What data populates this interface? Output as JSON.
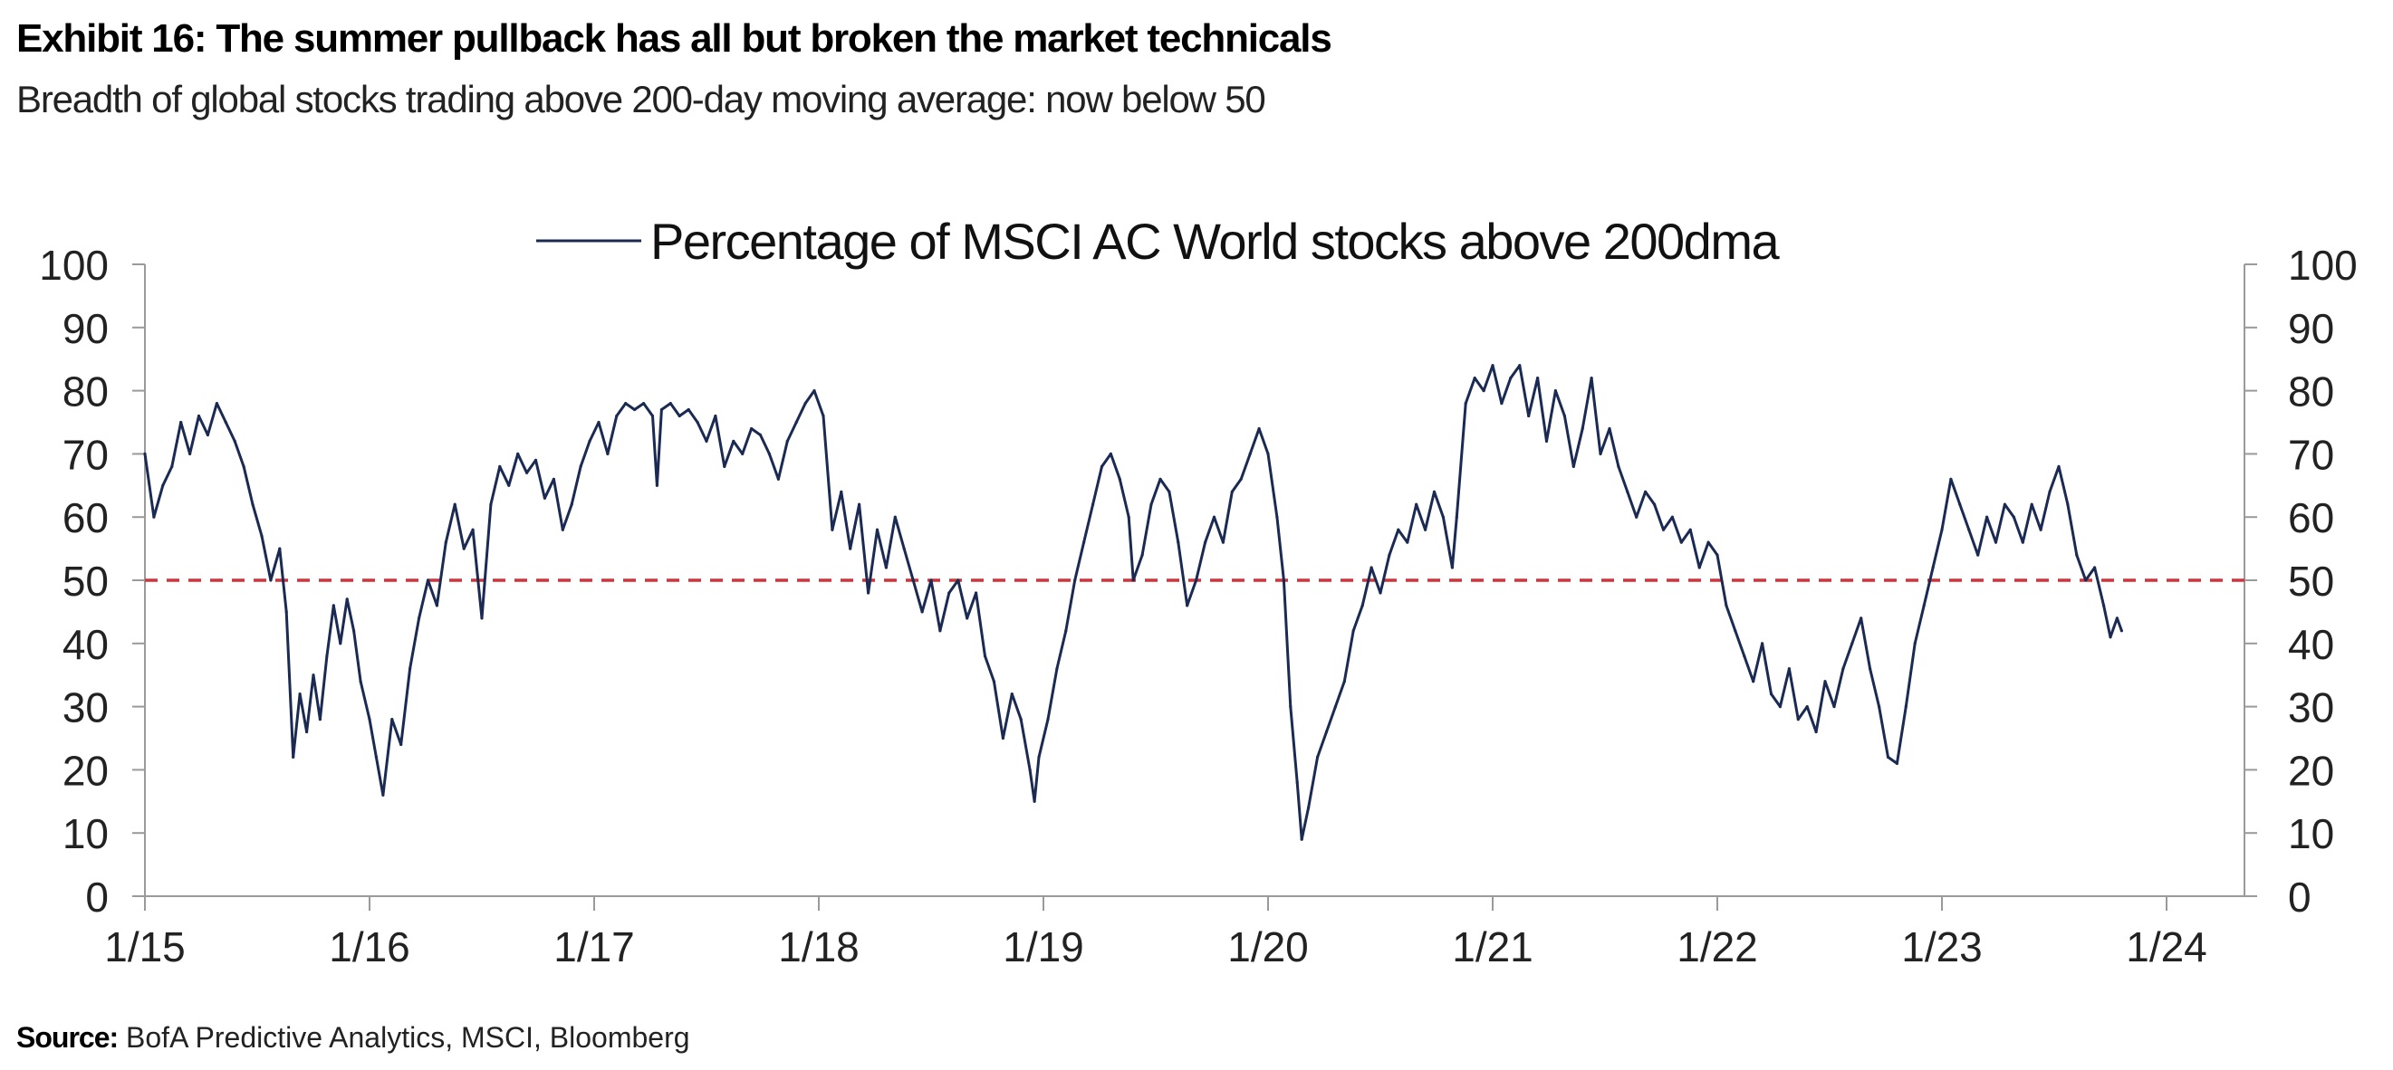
{
  "header": {
    "title": "Exhibit 16: The summer pullback has all but broken the market technicals",
    "subtitle": "Breadth of global stocks trading above 200-day moving average: now below 50"
  },
  "footer": {
    "source_label": "Source:",
    "source_text": "BofA Predictive Analytics, MSCI, Bloomberg"
  },
  "colors": {
    "series": "#1b2a52",
    "reference": "#d0343a",
    "axis": "#9a9a9a"
  },
  "chart_data": {
    "type": "line",
    "legend": {
      "label": "Percentage of MSCI AC World stocks above 200dma",
      "position": "top-center"
    },
    "x_tick_labels": [
      "1/15",
      "1/16",
      "1/17",
      "1/18",
      "1/19",
      "1/20",
      "1/21",
      "1/22",
      "1/23",
      "1/24"
    ],
    "x_range": [
      2015.0,
      2024.0
    ],
    "y_left_ticks": [
      "100",
      "90",
      "80",
      "70",
      "60",
      "50",
      "40",
      "30",
      "20",
      "10",
      "0"
    ],
    "y_right_ticks": [
      "100",
      "90",
      "80",
      "70",
      "60",
      "50",
      "40",
      "30",
      "20",
      "10",
      "0"
    ],
    "ylim": [
      0,
      100
    ],
    "reference_line": {
      "y": 50,
      "style": "dashed"
    },
    "series": [
      {
        "name": "Percentage of MSCI AC World stocks above 200dma",
        "points": [
          [
            2015.0,
            70
          ],
          [
            2015.04,
            60
          ],
          [
            2015.08,
            65
          ],
          [
            2015.12,
            68
          ],
          [
            2015.16,
            75
          ],
          [
            2015.2,
            70
          ],
          [
            2015.24,
            76
          ],
          [
            2015.28,
            73
          ],
          [
            2015.32,
            78
          ],
          [
            2015.36,
            75
          ],
          [
            2015.4,
            72
          ],
          [
            2015.44,
            68
          ],
          [
            2015.48,
            62
          ],
          [
            2015.52,
            57
          ],
          [
            2015.56,
            50
          ],
          [
            2015.6,
            55
          ],
          [
            2015.63,
            45
          ],
          [
            2015.66,
            22
          ],
          [
            2015.69,
            32
          ],
          [
            2015.72,
            26
          ],
          [
            2015.75,
            35
          ],
          [
            2015.78,
            28
          ],
          [
            2015.81,
            38
          ],
          [
            2015.84,
            46
          ],
          [
            2015.87,
            40
          ],
          [
            2015.9,
            47
          ],
          [
            2015.93,
            42
          ],
          [
            2015.96,
            34
          ],
          [
            2016.0,
            28
          ],
          [
            2016.03,
            22
          ],
          [
            2016.06,
            16
          ],
          [
            2016.1,
            28
          ],
          [
            2016.14,
            24
          ],
          [
            2016.18,
            36
          ],
          [
            2016.22,
            44
          ],
          [
            2016.26,
            50
          ],
          [
            2016.3,
            46
          ],
          [
            2016.34,
            56
          ],
          [
            2016.38,
            62
          ],
          [
            2016.42,
            55
          ],
          [
            2016.46,
            58
          ],
          [
            2016.5,
            44
          ],
          [
            2016.54,
            62
          ],
          [
            2016.58,
            68
          ],
          [
            2016.62,
            65
          ],
          [
            2016.66,
            70
          ],
          [
            2016.7,
            67
          ],
          [
            2016.74,
            69
          ],
          [
            2016.78,
            63
          ],
          [
            2016.82,
            66
          ],
          [
            2016.86,
            58
          ],
          [
            2016.9,
            62
          ],
          [
            2016.94,
            68
          ],
          [
            2016.98,
            72
          ],
          [
            2017.02,
            75
          ],
          [
            2017.06,
            70
          ],
          [
            2017.1,
            76
          ],
          [
            2017.14,
            78
          ],
          [
            2017.18,
            77
          ],
          [
            2017.22,
            78
          ],
          [
            2017.26,
            76
          ],
          [
            2017.28,
            65
          ],
          [
            2017.3,
            77
          ],
          [
            2017.34,
            78
          ],
          [
            2017.38,
            76
          ],
          [
            2017.42,
            77
          ],
          [
            2017.46,
            75
          ],
          [
            2017.5,
            72
          ],
          [
            2017.54,
            76
          ],
          [
            2017.58,
            68
          ],
          [
            2017.62,
            72
          ],
          [
            2017.66,
            70
          ],
          [
            2017.7,
            74
          ],
          [
            2017.74,
            73
          ],
          [
            2017.78,
            70
          ],
          [
            2017.82,
            66
          ],
          [
            2017.86,
            72
          ],
          [
            2017.9,
            75
          ],
          [
            2017.94,
            78
          ],
          [
            2017.98,
            80
          ],
          [
            2018.02,
            76
          ],
          [
            2018.06,
            58
          ],
          [
            2018.1,
            64
          ],
          [
            2018.14,
            55
          ],
          [
            2018.18,
            62
          ],
          [
            2018.22,
            48
          ],
          [
            2018.26,
            58
          ],
          [
            2018.3,
            52
          ],
          [
            2018.34,
            60
          ],
          [
            2018.38,
            55
          ],
          [
            2018.42,
            50
          ],
          [
            2018.46,
            45
          ],
          [
            2018.5,
            50
          ],
          [
            2018.54,
            42
          ],
          [
            2018.58,
            48
          ],
          [
            2018.62,
            50
          ],
          [
            2018.66,
            44
          ],
          [
            2018.7,
            48
          ],
          [
            2018.74,
            38
          ],
          [
            2018.78,
            34
          ],
          [
            2018.82,
            25
          ],
          [
            2018.86,
            32
          ],
          [
            2018.9,
            28
          ],
          [
            2018.94,
            20
          ],
          [
            2018.96,
            15
          ],
          [
            2018.98,
            22
          ],
          [
            2019.02,
            28
          ],
          [
            2019.06,
            36
          ],
          [
            2019.1,
            42
          ],
          [
            2019.14,
            50
          ],
          [
            2019.18,
            56
          ],
          [
            2019.22,
            62
          ],
          [
            2019.26,
            68
          ],
          [
            2019.3,
            70
          ],
          [
            2019.34,
            66
          ],
          [
            2019.38,
            60
          ],
          [
            2019.4,
            50
          ],
          [
            2019.44,
            54
          ],
          [
            2019.48,
            62
          ],
          [
            2019.52,
            66
          ],
          [
            2019.56,
            64
          ],
          [
            2019.6,
            56
          ],
          [
            2019.64,
            46
          ],
          [
            2019.68,
            50
          ],
          [
            2019.72,
            56
          ],
          [
            2019.76,
            60
          ],
          [
            2019.8,
            56
          ],
          [
            2019.84,
            64
          ],
          [
            2019.88,
            66
          ],
          [
            2019.92,
            70
          ],
          [
            2019.96,
            74
          ],
          [
            2020.0,
            70
          ],
          [
            2020.04,
            60
          ],
          [
            2020.07,
            50
          ],
          [
            2020.1,
            30
          ],
          [
            2020.13,
            18
          ],
          [
            2020.15,
            9
          ],
          [
            2020.18,
            14
          ],
          [
            2020.22,
            22
          ],
          [
            2020.26,
            26
          ],
          [
            2020.3,
            30
          ],
          [
            2020.34,
            34
          ],
          [
            2020.38,
            42
          ],
          [
            2020.42,
            46
          ],
          [
            2020.46,
            52
          ],
          [
            2020.5,
            48
          ],
          [
            2020.54,
            54
          ],
          [
            2020.58,
            58
          ],
          [
            2020.62,
            56
          ],
          [
            2020.66,
            62
          ],
          [
            2020.7,
            58
          ],
          [
            2020.74,
            64
          ],
          [
            2020.78,
            60
          ],
          [
            2020.82,
            52
          ],
          [
            2020.84,
            60
          ],
          [
            2020.88,
            78
          ],
          [
            2020.92,
            82
          ],
          [
            2020.96,
            80
          ],
          [
            2021.0,
            84
          ],
          [
            2021.04,
            78
          ],
          [
            2021.08,
            82
          ],
          [
            2021.12,
            84
          ],
          [
            2021.16,
            76
          ],
          [
            2021.2,
            82
          ],
          [
            2021.24,
            72
          ],
          [
            2021.28,
            80
          ],
          [
            2021.32,
            76
          ],
          [
            2021.36,
            68
          ],
          [
            2021.4,
            74
          ],
          [
            2021.44,
            82
          ],
          [
            2021.48,
            70
          ],
          [
            2021.52,
            74
          ],
          [
            2021.56,
            68
          ],
          [
            2021.6,
            64
          ],
          [
            2021.64,
            60
          ],
          [
            2021.68,
            64
          ],
          [
            2021.72,
            62
          ],
          [
            2021.76,
            58
          ],
          [
            2021.8,
            60
          ],
          [
            2021.84,
            56
          ],
          [
            2021.88,
            58
          ],
          [
            2021.92,
            52
          ],
          [
            2021.96,
            56
          ],
          [
            2022.0,
            54
          ],
          [
            2022.04,
            46
          ],
          [
            2022.08,
            42
          ],
          [
            2022.12,
            38
          ],
          [
            2022.16,
            34
          ],
          [
            2022.2,
            40
          ],
          [
            2022.24,
            32
          ],
          [
            2022.28,
            30
          ],
          [
            2022.32,
            36
          ],
          [
            2022.36,
            28
          ],
          [
            2022.4,
            30
          ],
          [
            2022.44,
            26
          ],
          [
            2022.48,
            34
          ],
          [
            2022.52,
            30
          ],
          [
            2022.56,
            36
          ],
          [
            2022.6,
            40
          ],
          [
            2022.64,
            44
          ],
          [
            2022.68,
            36
          ],
          [
            2022.72,
            30
          ],
          [
            2022.76,
            22
          ],
          [
            2022.8,
            21
          ],
          [
            2022.84,
            30
          ],
          [
            2022.88,
            40
          ],
          [
            2022.92,
            46
          ],
          [
            2022.96,
            52
          ],
          [
            2023.0,
            58
          ],
          [
            2023.04,
            66
          ],
          [
            2023.08,
            62
          ],
          [
            2023.12,
            58
          ],
          [
            2023.16,
            54
          ],
          [
            2023.2,
            60
          ],
          [
            2023.24,
            56
          ],
          [
            2023.28,
            62
          ],
          [
            2023.32,
            60
          ],
          [
            2023.36,
            56
          ],
          [
            2023.4,
            62
          ],
          [
            2023.44,
            58
          ],
          [
            2023.48,
            64
          ],
          [
            2023.52,
            68
          ],
          [
            2023.56,
            62
          ],
          [
            2023.6,
            54
          ],
          [
            2023.64,
            50
          ],
          [
            2023.68,
            52
          ],
          [
            2023.72,
            46
          ],
          [
            2023.75,
            41
          ],
          [
            2023.78,
            44
          ],
          [
            2023.8,
            42
          ]
        ]
      }
    ]
  }
}
